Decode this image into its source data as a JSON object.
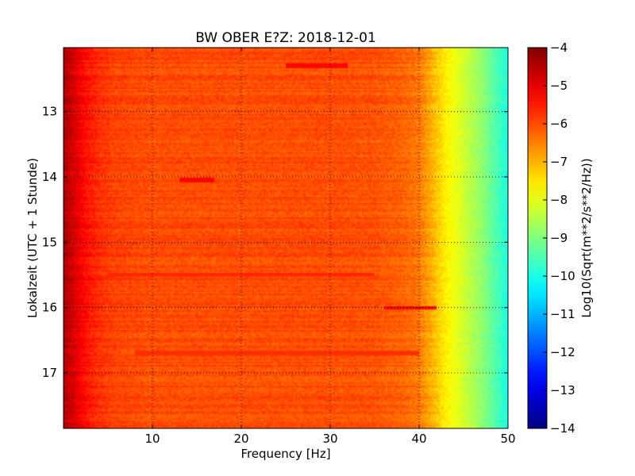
{
  "chart_data": {
    "type": "heatmap",
    "title": "BW OBER E?Z: 2018-12-01",
    "xlabel": "Frequency [Hz]",
    "ylabel": "Lokalzeit (UTC + 1 Stunde)",
    "xlim": [
      0,
      50
    ],
    "ylim": [
      17.85,
      12.02
    ],
    "x_ticks": [
      10,
      20,
      30,
      40,
      50
    ],
    "y_ticks": [
      13,
      14,
      15,
      16,
      17
    ],
    "grid": true,
    "colormap": "jet",
    "colorbar": {
      "label": "Log10(Sqrt(m**2/s**2/Hz))",
      "min": -14,
      "max": -4,
      "ticks": [
        -4,
        -5,
        -6,
        -7,
        -8,
        -9,
        -10,
        -11,
        -12,
        -13,
        -14
      ]
    },
    "profile_by_frequency": {
      "frequency_hz": [
        0,
        1,
        2,
        3,
        4,
        6,
        10,
        20,
        30,
        35,
        38,
        40,
        41,
        42,
        43,
        44,
        45,
        46,
        47,
        48,
        49,
        50
      ],
      "level": [
        -4.4,
        -4.8,
        -5.2,
        -5.5,
        -5.7,
        -5.9,
        -6.0,
        -6.0,
        -6.0,
        -6.05,
        -6.2,
        -6.4,
        -6.8,
        -7.2,
        -7.6,
        -7.9,
        -8.2,
        -8.5,
        -8.8,
        -9.2,
        -9.6,
        -10.0
      ]
    },
    "notable_bands": [
      {
        "time": 12.3,
        "f_start": 25,
        "f_end": 32,
        "level": -5.3
      },
      {
        "time": 14.05,
        "f_start": 13,
        "f_end": 17,
        "level": -5.2
      },
      {
        "time": 15.5,
        "f_start": 5,
        "f_end": 35,
        "level": -5.6
      },
      {
        "time": 16.0,
        "f_start": 36,
        "f_end": 42,
        "level": -5.3
      },
      {
        "time": 16.7,
        "f_start": 8,
        "f_end": 40,
        "level": -5.7
      }
    ]
  }
}
